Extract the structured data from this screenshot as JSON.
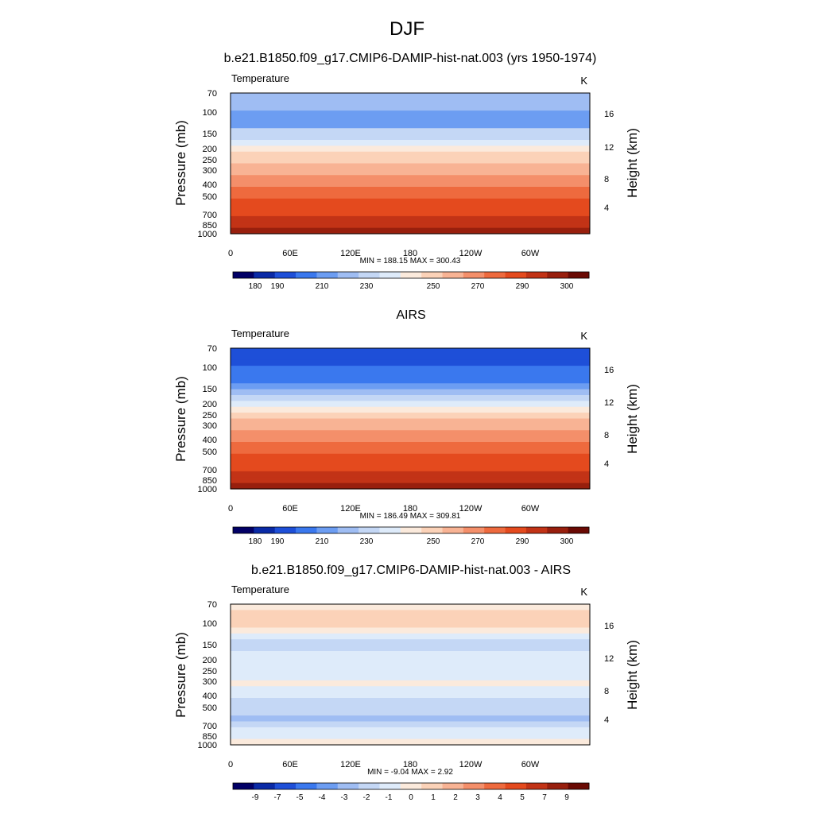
{
  "page_title": "DJF",
  "chart_data": [
    {
      "type": "heatmap",
      "title": "b.e21.B1850.f09_g17.CMIP6-DAMIP-hist-nat.003 (yrs 1950-1974)",
      "left_label": "Temperature",
      "right_label": "K",
      "ylabel": "Pressure (mb)",
      "y2label": "Height (km)",
      "x_ticks": [
        "0",
        "60E",
        "120E",
        "180",
        "120W",
        "60W"
      ],
      "y_ticks": [
        "70",
        "100",
        "150",
        "200",
        "250",
        "300",
        "400",
        "500",
        "700",
        "850",
        "1000"
      ],
      "y2_ticks": [
        "16",
        "12",
        "8",
        "4"
      ],
      "stats": "MIN = 188.15  MAX = 300.43",
      "colorbar_labels": [
        "180",
        "190",
        "210",
        "230",
        "250",
        "270",
        "290",
        "300"
      ],
      "colors": [
        "#020066",
        "#0a2aa6",
        "#1e4fd8",
        "#3a78ee",
        "#6c9df2",
        "#9fbdf3",
        "#c4d7f5",
        "#deebfa",
        "#fbeadc",
        "#fbd2b8",
        "#f8b394",
        "#f48f6a",
        "#ee6a3e",
        "#e44a1e",
        "#c23316",
        "#981f0d",
        "#6a0a04"
      ],
      "band_levels": [
        "5",
        "5",
        "5",
        "4",
        "4",
        "4",
        "6",
        "6",
        "7",
        "8",
        "9",
        "9",
        "10",
        "10",
        "11",
        "11",
        "12",
        "12",
        "13",
        "13",
        "13",
        "14",
        "14",
        "15"
      ]
    },
    {
      "type": "heatmap",
      "title": "AIRS",
      "left_label": "Temperature",
      "right_label": "K",
      "ylabel": "Pressure (mb)",
      "y2label": "Height (km)",
      "x_ticks": [
        "0",
        "60E",
        "120E",
        "180",
        "120W",
        "60W"
      ],
      "y_ticks": [
        "70",
        "100",
        "150",
        "200",
        "250",
        "300",
        "400",
        "500",
        "700",
        "850",
        "1000"
      ],
      "y2_ticks": [
        "16",
        "12",
        "8",
        "4"
      ],
      "stats": "MIN = 186.49  MAX = 309.81",
      "colorbar_labels": [
        "180",
        "190",
        "210",
        "230",
        "250",
        "270",
        "290",
        "300"
      ],
      "colors": [
        "#020066",
        "#0a2aa6",
        "#1e4fd8",
        "#3a78ee",
        "#6c9df2",
        "#9fbdf3",
        "#c4d7f5",
        "#deebfa",
        "#fbeadc",
        "#fbd2b8",
        "#f8b394",
        "#f48f6a",
        "#ee6a3e",
        "#e44a1e",
        "#c23316",
        "#981f0d",
        "#6a0a04"
      ],
      "band_levels": [
        "2",
        "2",
        "2",
        "3",
        "3",
        "3",
        "4",
        "5",
        "6",
        "7",
        "8",
        "9",
        "10",
        "10",
        "11",
        "11",
        "12",
        "12",
        "13",
        "13",
        "13",
        "14",
        "14",
        "15"
      ]
    },
    {
      "type": "heatmap",
      "title": "b.e21.B1850.f09_g17.CMIP6-DAMIP-hist-nat.003 - AIRS",
      "left_label": "Temperature",
      "right_label": "K",
      "ylabel": "Pressure (mb)",
      "y2label": "Height (km)",
      "x_ticks": [
        "0",
        "60E",
        "120E",
        "180",
        "120W",
        "60W"
      ],
      "y_ticks": [
        "70",
        "100",
        "150",
        "200",
        "250",
        "300",
        "400",
        "500",
        "700",
        "850",
        "1000"
      ],
      "y2_ticks": [
        "16",
        "12",
        "8",
        "4"
      ],
      "stats": "MIN = -9.04  MAX =   2.92",
      "colorbar_labels": [
        "-9",
        "-7",
        "-5",
        "-4",
        "-3",
        "-2",
        "-1",
        "0",
        "1",
        "2",
        "3",
        "4",
        "5",
        "7",
        "9"
      ],
      "colors": [
        "#020066",
        "#0a2aa6",
        "#1e4fd8",
        "#3a78ee",
        "#6c9df2",
        "#9fbdf3",
        "#c4d7f5",
        "#deebfa",
        "#fbeadc",
        "#fbd2b8",
        "#f8b394",
        "#f48f6a",
        "#ee6a3e",
        "#e44a1e",
        "#c23316",
        "#981f0d",
        "#6a0a04"
      ],
      "band_levels": [
        "8",
        "9",
        "9",
        "9",
        "8",
        "7",
        "6",
        "6",
        "7",
        "7",
        "7",
        "7",
        "7",
        "8",
        "7",
        "7",
        "6",
        "6",
        "6",
        "5",
        "6",
        "7",
        "7",
        "8"
      ]
    }
  ]
}
